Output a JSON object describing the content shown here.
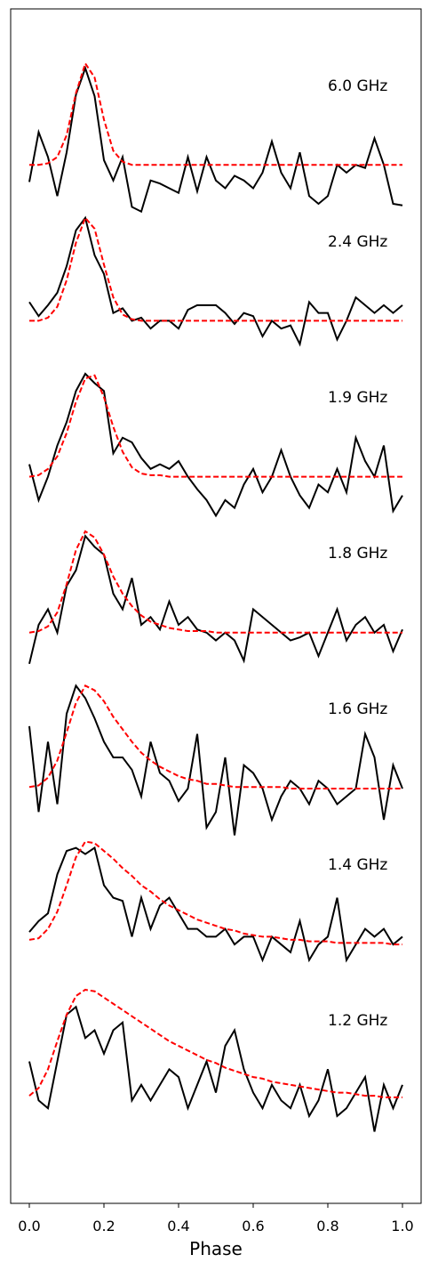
{
  "chart_data": {
    "type": "line",
    "xlabel": "Phase",
    "xlim": [
      -0.05,
      1.05
    ],
    "ylim": [
      -0.66,
      7.0
    ],
    "xticks": [
      {
        "value": 0,
        "label": "0.0"
      },
      0.2,
      0.4,
      0.6,
      0.8,
      {
        "value": 1,
        "label": "1.0"
      }
    ],
    "color": "#000000",
    "fit_color": "#ff0000",
    "x": [
      0,
      0.025,
      0.05,
      0.075,
      0.1,
      0.125,
      0.15,
      0.175,
      0.2,
      0.225,
      0.25,
      0.275,
      0.3,
      0.325,
      0.35,
      0.375,
      0.4,
      0.425,
      0.45,
      0.475,
      0.5,
      0.525,
      0.55,
      0.575,
      0.6,
      0.625,
      0.65,
      0.675,
      0.7,
      0.725,
      0.75,
      0.775,
      0.8,
      0.825,
      0.85,
      0.875,
      0.9,
      0.925,
      0.95,
      0.975,
      1
    ],
    "series": [
      {
        "name": "6.0 GHz",
        "values": [
          5.89,
          6.21,
          6.05,
          5.8,
          6.08,
          6.45,
          6.62,
          6.44,
          6.03,
          5.9,
          6.05,
          5.73,
          5.7,
          5.9,
          5.88,
          5.85,
          5.82,
          6.05,
          5.83,
          6.05,
          5.9,
          5.85,
          5.93,
          5.9,
          5.85,
          5.95,
          6.15,
          5.95,
          5.85,
          6.08,
          5.8,
          5.75,
          5.8,
          6.0,
          5.95,
          6.0,
          5.98,
          6.17,
          6.0,
          5.75,
          5.74
        ],
        "fit": [
          6,
          6,
          6.01,
          6.05,
          6.19,
          6.46,
          6.65,
          6.56,
          6.29,
          6.09,
          6.02,
          6,
          6,
          6,
          6,
          6,
          6,
          6,
          6,
          6,
          6,
          6,
          6,
          6,
          6,
          6,
          6,
          6,
          6,
          6,
          6,
          6,
          6,
          6,
          6,
          6,
          6,
          6,
          6,
          6,
          6
        ]
      },
      {
        "name": "2.4 GHz",
        "values": [
          5.12,
          5.03,
          5.1,
          5.18,
          5.35,
          5.58,
          5.66,
          5.42,
          5.3,
          5.05,
          5.08,
          5.0,
          5.02,
          4.95,
          5.0,
          5.0,
          4.95,
          5.07,
          5.1,
          5.1,
          5.1,
          5.05,
          4.98,
          5.05,
          5.03,
          4.9,
          5.0,
          4.95,
          4.97,
          4.85,
          5.12,
          5.05,
          5.05,
          4.88,
          5.0,
          5.15,
          5.1,
          5.05,
          5.1,
          5.05,
          5.1
        ],
        "fit": [
          5,
          5,
          5.02,
          5.09,
          5.26,
          5.5,
          5.66,
          5.59,
          5.36,
          5.15,
          5.04,
          5.01,
          5,
          5,
          5,
          5,
          5,
          5,
          5,
          5,
          5,
          5,
          5,
          5,
          5,
          5,
          5,
          5,
          5,
          5,
          5,
          5,
          5,
          5,
          5,
          5,
          5,
          5,
          5,
          5,
          5
        ]
      },
      {
        "name": "1.9 GHz",
        "values": [
          4.08,
          3.85,
          4.0,
          4.2,
          4.35,
          4.55,
          4.66,
          4.6,
          4.55,
          4.15,
          4.25,
          4.22,
          4.12,
          4.05,
          4.08,
          4.05,
          4.1,
          4.0,
          3.92,
          3.85,
          3.75,
          3.85,
          3.8,
          3.95,
          4.05,
          3.9,
          4.0,
          4.17,
          4.0,
          3.88,
          3.8,
          3.95,
          3.9,
          4.05,
          3.9,
          4.25,
          4.1,
          4.0,
          4.2,
          3.78,
          3.88
        ],
        "fit": [
          4,
          4.01,
          4.05,
          4.13,
          4.28,
          4.48,
          4.63,
          4.65,
          4.51,
          4.32,
          4.16,
          4.06,
          4.02,
          4.01,
          4.01,
          4,
          4,
          4,
          4,
          4,
          4,
          4,
          4,
          4,
          4,
          4,
          4,
          4,
          4,
          4,
          4,
          4,
          4,
          4,
          4,
          4,
          4,
          4,
          4,
          4,
          4
        ]
      },
      {
        "name": "1.8 GHz",
        "values": [
          2.8,
          3.05,
          3.15,
          3.0,
          3.3,
          3.4,
          3.62,
          3.55,
          3.5,
          3.25,
          3.15,
          3.35,
          3.05,
          3.1,
          3.02,
          3.2,
          3.05,
          3.1,
          3.02,
          3.0,
          2.95,
          3.0,
          2.95,
          2.82,
          3.15,
          3.1,
          3.05,
          3.0,
          2.95,
          2.97,
          3.0,
          2.85,
          3.0,
          3.15,
          2.95,
          3.05,
          3.1,
          3.0,
          3.05,
          2.88,
          3.02
        ],
        "fit": [
          3,
          3.01,
          3.04,
          3.13,
          3.31,
          3.53,
          3.65,
          3.61,
          3.5,
          3.36,
          3.25,
          3.17,
          3.11,
          3.07,
          3.05,
          3.03,
          3.02,
          3.01,
          3.01,
          3.01,
          3,
          3,
          3,
          3,
          3,
          3,
          3,
          3,
          3,
          3,
          3,
          3,
          3,
          3,
          3,
          3,
          3,
          3,
          3,
          3,
          3
        ]
      },
      {
        "name": "1.6 GHz",
        "values": [
          2.4,
          1.85,
          2.3,
          1.9,
          2.48,
          2.66,
          2.58,
          2.45,
          2.3,
          2.2,
          2.2,
          2.12,
          1.95,
          2.3,
          2.1,
          2.05,
          1.92,
          2.0,
          2.35,
          1.75,
          1.85,
          2.2,
          1.7,
          2.15,
          2.1,
          2.0,
          1.8,
          1.95,
          2.05,
          2.0,
          1.9,
          2.05,
          2.0,
          1.9,
          1.95,
          2.0,
          2.35,
          2.2,
          1.8,
          2.15,
          2.0
        ],
        "fit": [
          2.01,
          2.02,
          2.07,
          2.18,
          2.36,
          2.55,
          2.66,
          2.63,
          2.56,
          2.46,
          2.38,
          2.3,
          2.23,
          2.18,
          2.14,
          2.11,
          2.08,
          2.06,
          2.05,
          2.03,
          2.03,
          2.02,
          2.01,
          2.01,
          2.01,
          2.01,
          2.01,
          2.01,
          2,
          2,
          2,
          2,
          2,
          2,
          2,
          2,
          2,
          2,
          2,
          2,
          2
        ]
      },
      {
        "name": "1.4 GHz",
        "values": [
          1.08,
          1.15,
          1.2,
          1.45,
          1.6,
          1.62,
          1.58,
          1.62,
          1.38,
          1.3,
          1.28,
          1.05,
          1.3,
          1.1,
          1.25,
          1.3,
          1.2,
          1.1,
          1.1,
          1.05,
          1.05,
          1.1,
          1.0,
          1.05,
          1.05,
          0.9,
          1.05,
          1.0,
          0.95,
          1.15,
          0.9,
          1.0,
          1.05,
          1.3,
          0.9,
          1.0,
          1.1,
          1.05,
          1.1,
          1.0,
          1.05
        ],
        "fit": [
          1.03,
          1.04,
          1.1,
          1.21,
          1.38,
          1.56,
          1.66,
          1.65,
          1.6,
          1.55,
          1.49,
          1.44,
          1.38,
          1.34,
          1.29,
          1.25,
          1.22,
          1.19,
          1.16,
          1.14,
          1.12,
          1.1,
          1.09,
          1.07,
          1.06,
          1.05,
          1.05,
          1.04,
          1.03,
          1.03,
          1.02,
          1.02,
          1.02,
          1.01,
          1.01,
          1.01,
          1.01,
          1.01,
          1.01,
          1,
          1
        ]
      },
      {
        "name": "1.2 GHz",
        "values": [
          0.25,
          0.0,
          -0.05,
          0.25,
          0.55,
          0.6,
          0.4,
          0.45,
          0.3,
          0.45,
          0.5,
          0.0,
          0.1,
          0.0,
          0.1,
          0.2,
          0.15,
          -0.05,
          0.1,
          0.25,
          0.05,
          0.35,
          0.45,
          0.2,
          0.05,
          -0.05,
          0.1,
          0.0,
          -0.05,
          0.1,
          -0.1,
          0.0,
          0.2,
          -0.1,
          -0.05,
          0.05,
          0.15,
          -0.2,
          0.1,
          -0.05,
          0.1
        ],
        "fit": [
          0.03,
          0.08,
          0.2,
          0.38,
          0.55,
          0.67,
          0.71,
          0.7,
          0.66,
          0.62,
          0.58,
          0.54,
          0.5,
          0.46,
          0.42,
          0.38,
          0.35,
          0.32,
          0.29,
          0.26,
          0.24,
          0.21,
          0.19,
          0.17,
          0.15,
          0.14,
          0.12,
          0.11,
          0.1,
          0.09,
          0.08,
          0.07,
          0.06,
          0.05,
          0.05,
          0.04,
          0.03,
          0.03,
          0.02,
          0.02,
          0.02
        ]
      }
    ]
  }
}
